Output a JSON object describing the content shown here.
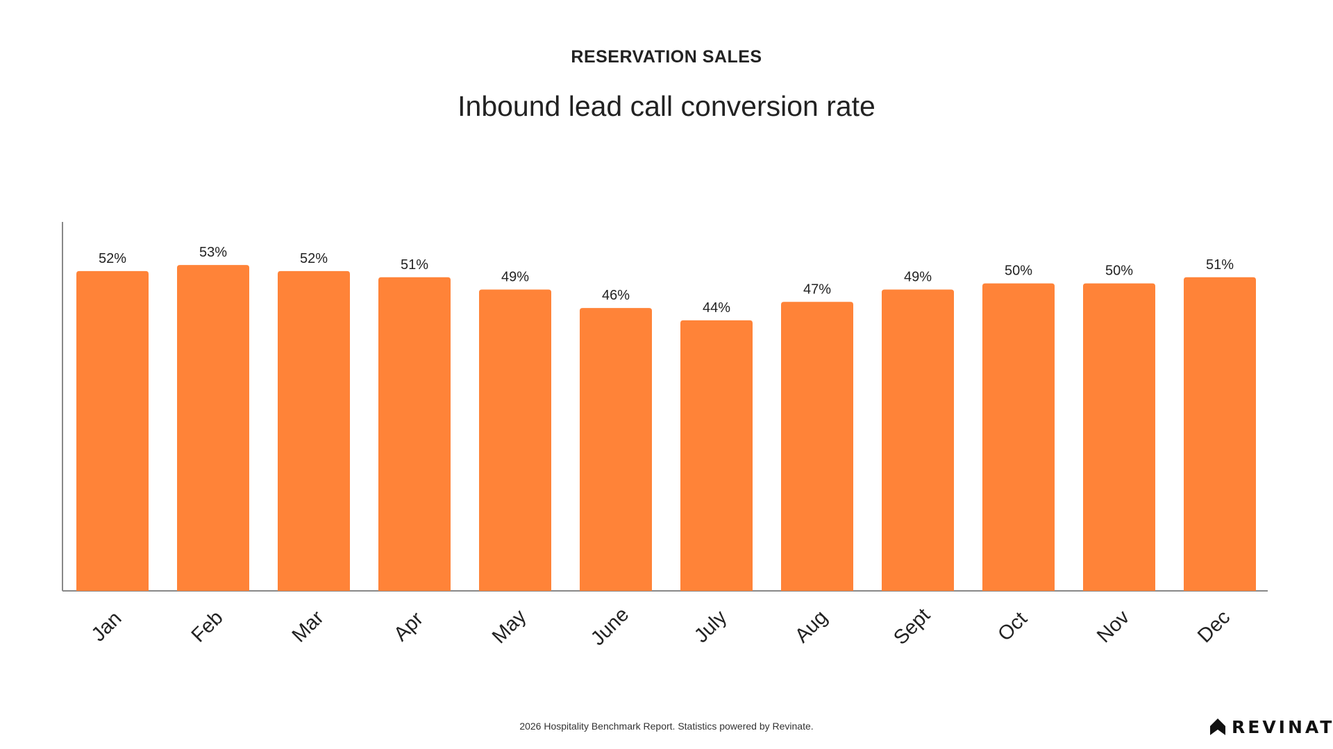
{
  "header": {
    "eyebrow": "RESERVATION SALES",
    "title": "Inbound lead call conversion rate"
  },
  "footer": {
    "note": "2026 Hospitality Benchmark Report. Statistics powered by Revinate."
  },
  "brand": {
    "name": "REVINATE",
    "logo_icon": "revinate-logo-icon"
  },
  "colors": {
    "bar": "#FF8338",
    "axis": "#888888",
    "text": "#222222"
  },
  "chart_data": {
    "type": "bar",
    "title": "Inbound lead call conversion rate",
    "xlabel": "",
    "ylabel": "",
    "categories": [
      "Jan",
      "Feb",
      "Mar",
      "Apr",
      "May",
      "June",
      "July",
      "Aug",
      "Sept",
      "Oct",
      "Nov",
      "Dec"
    ],
    "values": [
      52,
      53,
      52,
      51,
      49,
      46,
      44,
      47,
      49,
      50,
      50,
      51
    ],
    "value_labels": [
      "52%",
      "53%",
      "52%",
      "51%",
      "49%",
      "46%",
      "44%",
      "47%",
      "49%",
      "50%",
      "50%",
      "51%"
    ],
    "ylim": [
      0,
      60
    ],
    "grid": false,
    "legend": "none"
  }
}
